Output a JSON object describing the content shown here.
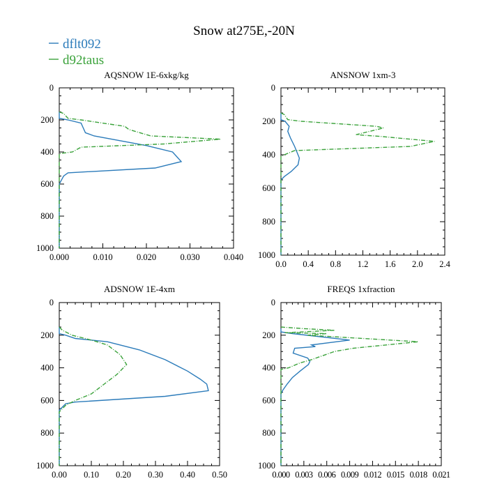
{
  "figure": {
    "title": "Snow at275E,-20N"
  },
  "legend": [
    {
      "name": "dflt092",
      "color": "#2b7bba",
      "dash": "solid"
    },
    {
      "name": "d92taus",
      "color": "#3aa23a",
      "dash": "dashed"
    }
  ],
  "chart_data": [
    {
      "type": "line",
      "title": "AQSNOW  1E-6xkg/kg",
      "xlim": [
        0,
        0.04
      ],
      "ylim": [
        1000,
        0
      ],
      "xticks": [
        0,
        0.01,
        0.02,
        0.03,
        0.04
      ],
      "xtick_labels": [
        "0.000",
        "0.010",
        "0.020",
        "0.030",
        "0.040"
      ],
      "yticks": [
        0,
        200,
        400,
        600,
        800,
        1000
      ],
      "ytick_labels": [
        "0",
        "200",
        "400",
        "600",
        "800",
        "1000"
      ],
      "series": [
        {
          "name": "dflt092",
          "points": [
            [
              0,
              150
            ],
            [
              0.0,
              190
            ],
            [
              0.002,
              200
            ],
            [
              0.005,
              220
            ],
            [
              0.0055,
              250
            ],
            [
              0.006,
              280
            ],
            [
              0.008,
              300
            ],
            [
              0.02,
              360
            ],
            [
              0.026,
              400
            ],
            [
              0.028,
              460
            ],
            [
              0.022,
              500
            ],
            [
              0.002,
              530
            ],
            [
              0.001,
              550
            ],
            [
              0.0,
              600
            ],
            [
              0,
              1000
            ]
          ]
        },
        {
          "name": "d92taus",
          "points": [
            [
              0,
              150
            ],
            [
              0.001,
              160
            ],
            [
              0.002,
              190
            ],
            [
              0.005,
              200
            ],
            [
              0.015,
              240
            ],
            [
              0.016,
              260
            ],
            [
              0.021,
              300
            ],
            [
              0.037,
              320
            ],
            [
              0.024,
              350
            ],
            [
              0.005,
              370
            ],
            [
              0.003,
              400
            ],
            [
              0,
              410
            ],
            [
              0,
              1000
            ]
          ]
        }
      ]
    },
    {
      "type": "line",
      "title": "ANSNOW  1xm-3",
      "xlim": [
        0,
        2.4
      ],
      "ylim": [
        1000,
        0
      ],
      "xticks": [
        0,
        0.4,
        0.8,
        1.2,
        1.6,
        2.0,
        2.4
      ],
      "xtick_labels": [
        "0.0",
        "0.4",
        "0.8",
        "1.2",
        "1.6",
        "2.0",
        "2.4"
      ],
      "yticks": [
        0,
        200,
        400,
        600,
        800,
        1000
      ],
      "ytick_labels": [
        "0",
        "200",
        "400",
        "600",
        "800",
        "1000"
      ],
      "series": [
        {
          "name": "dflt092",
          "points": [
            [
              0,
              150
            ],
            [
              0.0,
              190
            ],
            [
              0.06,
              200
            ],
            [
              0.12,
              230
            ],
            [
              0.1,
              260
            ],
            [
              0.14,
              300
            ],
            [
              0.2,
              350
            ],
            [
              0.24,
              390
            ],
            [
              0.27,
              420
            ],
            [
              0.25,
              460
            ],
            [
              0.15,
              500
            ],
            [
              0.05,
              530
            ],
            [
              0,
              550
            ],
            [
              0,
              1000
            ]
          ]
        },
        {
          "name": "d92taus",
          "points": [
            [
              0,
              150
            ],
            [
              0.05,
              160
            ],
            [
              0.1,
              190
            ],
            [
              0.3,
              200
            ],
            [
              1.4,
              230
            ],
            [
              1.5,
              240
            ],
            [
              1.1,
              280
            ],
            [
              1.45,
              290
            ],
            [
              2.25,
              320
            ],
            [
              1.9,
              350
            ],
            [
              0.2,
              375
            ],
            [
              0.05,
              400
            ],
            [
              0,
              410
            ],
            [
              0,
              1000
            ]
          ]
        }
      ]
    },
    {
      "type": "line",
      "title": "ADSNOW  1E-4xm",
      "xlim": [
        0,
        0.5
      ],
      "ylim": [
        1000,
        0
      ],
      "xticks": [
        0,
        0.1,
        0.2,
        0.3,
        0.4,
        0.5
      ],
      "xtick_labels": [
        "0.00",
        "0.10",
        "0.20",
        "0.30",
        "0.40",
        "0.50"
      ],
      "yticks": [
        0,
        200,
        400,
        600,
        800,
        1000
      ],
      "ytick_labels": [
        "0",
        "200",
        "400",
        "600",
        "800",
        "1000"
      ],
      "series": [
        {
          "name": "dflt092",
          "points": [
            [
              0,
              150
            ],
            [
              0.0,
              190
            ],
            [
              0.02,
              200
            ],
            [
              0.05,
              220
            ],
            [
              0.15,
              240
            ],
            [
              0.25,
              290
            ],
            [
              0.33,
              350
            ],
            [
              0.4,
              420
            ],
            [
              0.44,
              470
            ],
            [
              0.46,
              500
            ],
            [
              0.465,
              540
            ],
            [
              0.33,
              575
            ],
            [
              0.05,
              610
            ],
            [
              0.02,
              620
            ],
            [
              0.01,
              640
            ],
            [
              0,
              660
            ],
            [
              0,
              1000
            ]
          ]
        },
        {
          "name": "d92taus",
          "points": [
            [
              0,
              150
            ],
            [
              0.01,
              170
            ],
            [
              0.04,
              200
            ],
            [
              0.1,
              230
            ],
            [
              0.15,
              260
            ],
            [
              0.19,
              320
            ],
            [
              0.21,
              380
            ],
            [
              0.18,
              440
            ],
            [
              0.14,
              500
            ],
            [
              0.1,
              560
            ],
            [
              0.05,
              600
            ],
            [
              0.02,
              630
            ],
            [
              0.01,
              650
            ],
            [
              0,
              670
            ],
            [
              0,
              1000
            ]
          ]
        }
      ]
    },
    {
      "type": "line",
      "title": "FREQS  1xfraction",
      "xlim": [
        0,
        0.021
      ],
      "ylim": [
        1000,
        0
      ],
      "xticks": [
        0,
        0.003,
        0.006,
        0.009,
        0.012,
        0.015,
        0.018,
        0.021
      ],
      "xtick_labels": [
        "0.000",
        "0.003",
        "0.006",
        "0.009",
        "0.012",
        "0.015",
        "0.018",
        "0.021"
      ],
      "yticks": [
        0,
        200,
        400,
        600,
        800,
        1000
      ],
      "ytick_labels": [
        "0",
        "200",
        "400",
        "600",
        "800",
        "1000"
      ],
      "series": [
        {
          "name": "dflt092",
          "points": [
            [
              0,
              160
            ],
            [
              0.0,
              180
            ],
            [
              0.0015,
              190
            ],
            [
              0.009,
              230
            ],
            [
              0.004,
              260
            ],
            [
              0.0045,
              270
            ],
            [
              0.0018,
              280
            ],
            [
              0.0016,
              310
            ],
            [
              0.0035,
              340
            ],
            [
              0.0038,
              360
            ],
            [
              0.0036,
              380
            ],
            [
              0.0025,
              420
            ],
            [
              0.0015,
              460
            ],
            [
              0.0008,
              500
            ],
            [
              0.0002,
              540
            ],
            [
              0,
              560
            ],
            [
              0,
              1000
            ]
          ]
        },
        {
          "name": "d92taus",
          "points": [
            [
              0,
              150
            ],
            [
              0.003,
              160
            ],
            [
              0.007,
              170
            ],
            [
              0.0005,
              185
            ],
            [
              0.006,
              190
            ],
            [
              0.0035,
              200
            ],
            [
              0.018,
              240
            ],
            [
              0.0095,
              280
            ],
            [
              0.007,
              300
            ],
            [
              0.004,
              350
            ],
            [
              0.0025,
              370
            ],
            [
              0.002,
              380
            ],
            [
              0.001,
              400
            ],
            [
              0,
              410
            ],
            [
              0,
              1000
            ]
          ]
        }
      ]
    }
  ]
}
